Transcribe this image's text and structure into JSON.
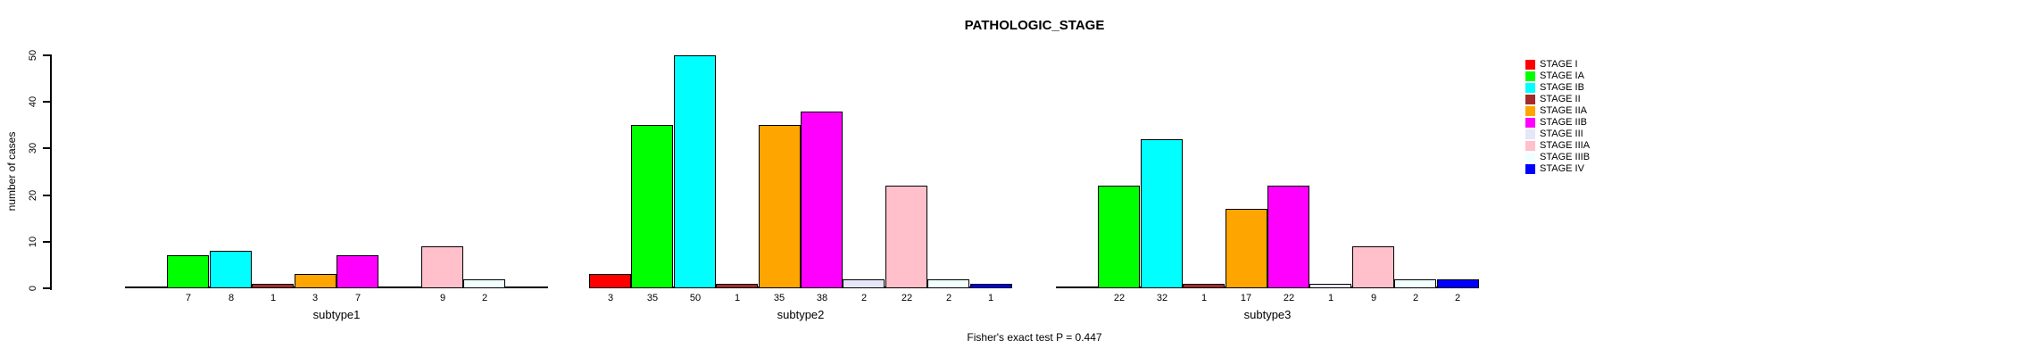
{
  "title": "PATHOLOGIC_STAGE",
  "footer": "Fisher's exact test P = 0.447",
  "chart_data": {
    "type": "bar",
    "title": "PATHOLOGIC_STAGE",
    "xlabel": "",
    "ylabel": "number of cases",
    "ylim": [
      0,
      50
    ],
    "yticks": [
      0,
      10,
      20,
      30,
      40,
      50
    ],
    "grid": false,
    "legend_position": "right",
    "annotation": "Fisher's exact test P = 0.447",
    "categories": [
      "STAGE I",
      "STAGE IA",
      "STAGE IB",
      "STAGE II",
      "STAGE IIA",
      "STAGE IIB",
      "STAGE III",
      "STAGE IIIA",
      "STAGE IIIB",
      "STAGE IV"
    ],
    "colors": [
      "#FF0000",
      "#00FF00",
      "#00FFFF",
      "#A52A2A",
      "#FFA500",
      "#FF00FF",
      "#E6E6FA",
      "#FFC0CB",
      "#F0FFFF",
      "#0000FF"
    ],
    "groups": [
      {
        "label": "subtype1",
        "values": [
          0,
          7,
          8,
          1,
          3,
          7,
          0,
          9,
          2,
          0
        ]
      },
      {
        "label": "subtype2",
        "values": [
          3,
          35,
          50,
          1,
          35,
          38,
          2,
          22,
          2,
          1
        ]
      },
      {
        "label": "subtype3",
        "values": [
          0,
          22,
          32,
          1,
          17,
          22,
          1,
          9,
          2,
          2
        ]
      }
    ]
  }
}
